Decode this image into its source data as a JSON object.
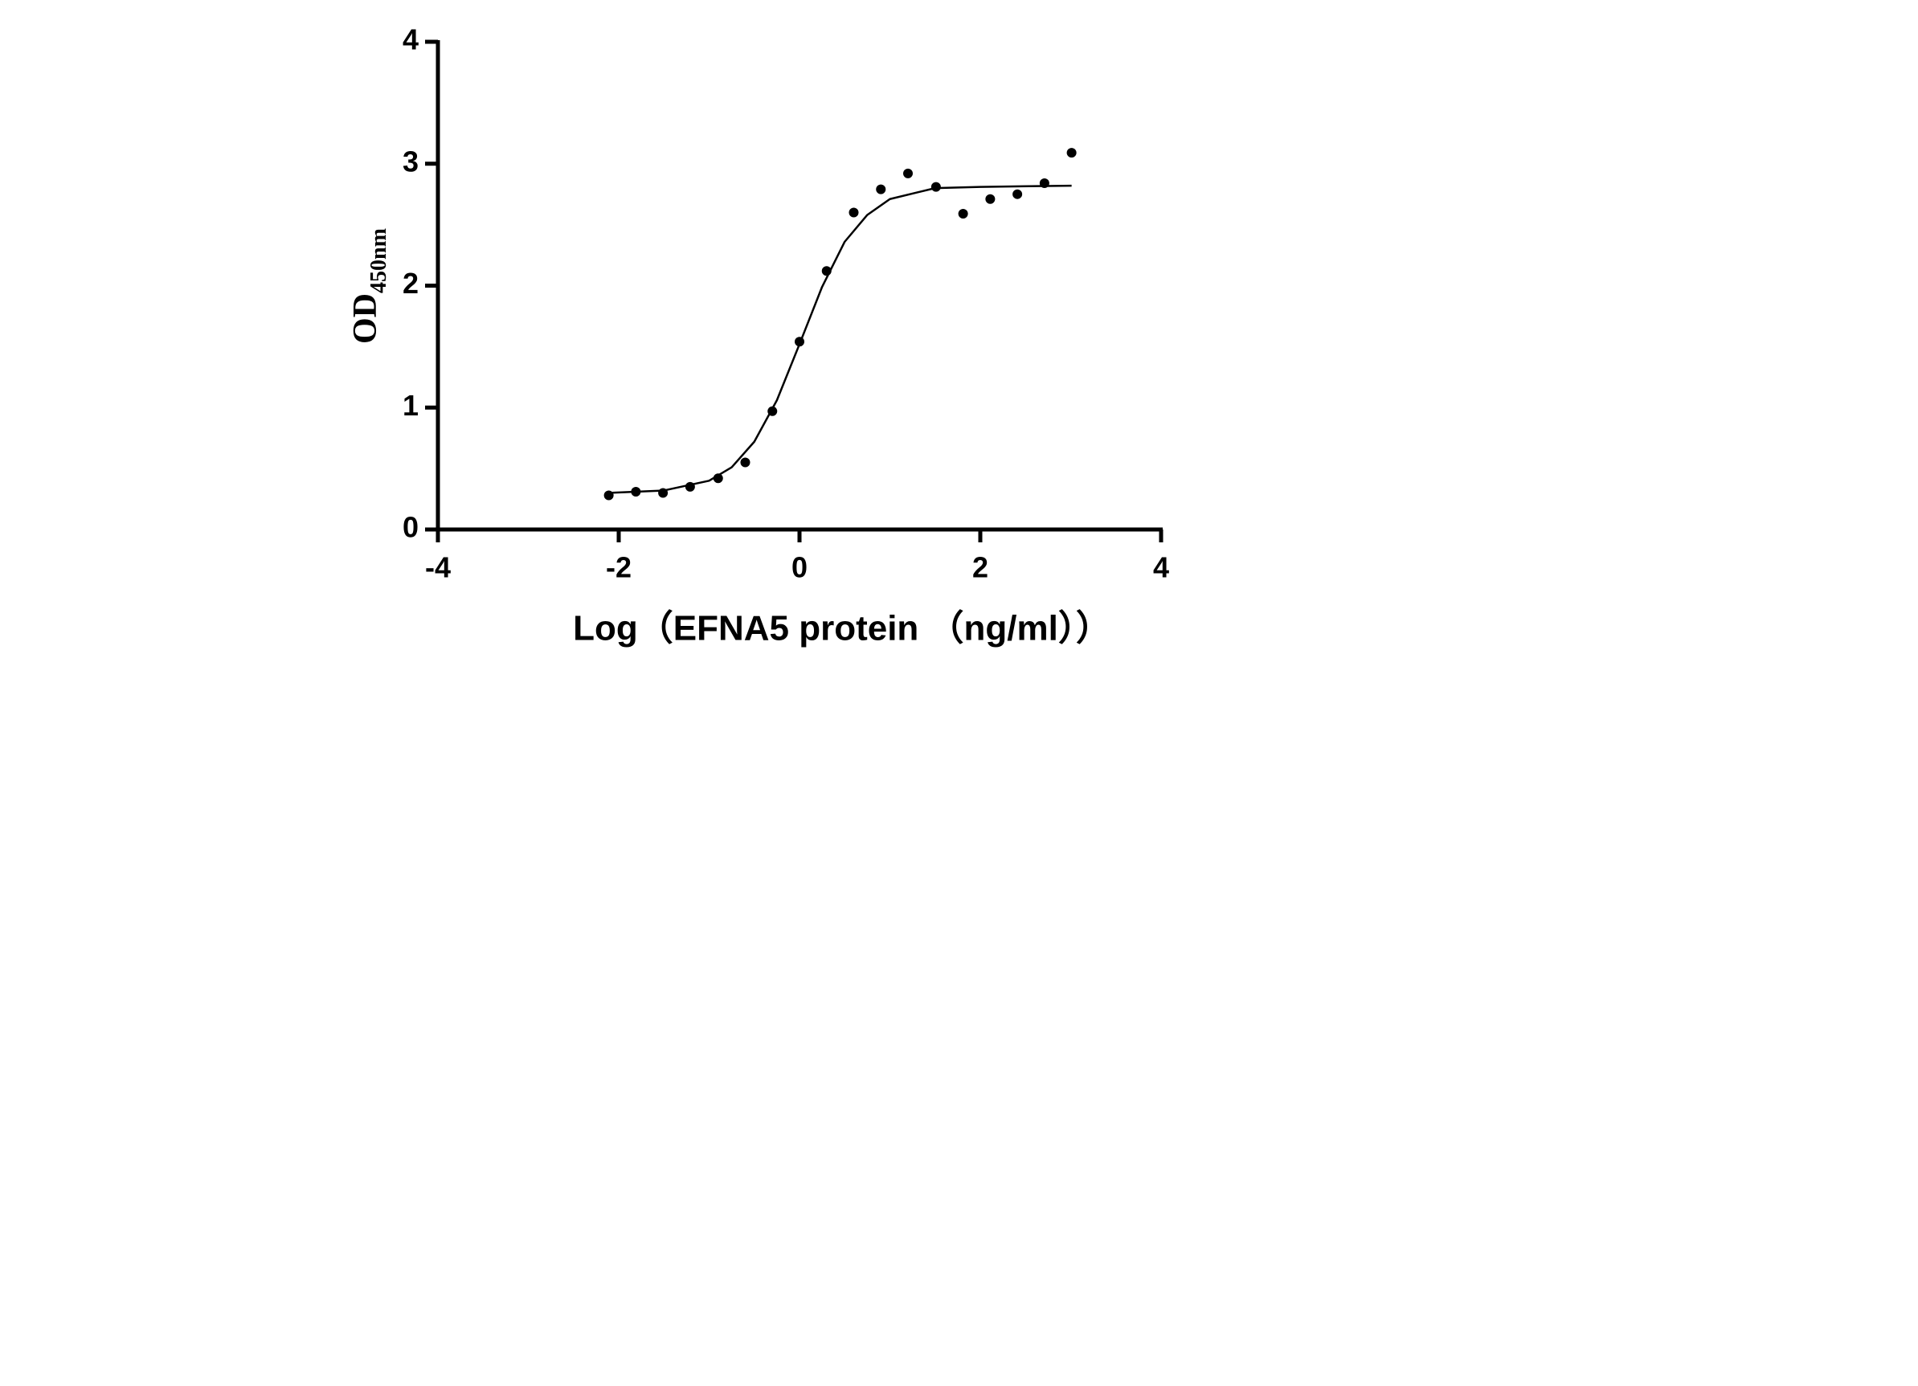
{
  "chart_data": {
    "type": "scatter",
    "x_label": "Log（EFNA5 protein （ng/ml））",
    "y_label": "OD",
    "y_label_sub": "450nm",
    "xlim": [
      -4,
      4
    ],
    "xticks": [
      -4,
      -2,
      0,
      2,
      4
    ],
    "ylim": [
      0,
      4
    ],
    "yticks": [
      0,
      1,
      2,
      3,
      4
    ],
    "series": [
      {
        "type": "scatter",
        "color": "#000000",
        "x": [
          -2.11,
          -1.81,
          -1.51,
          -1.21,
          -0.9,
          -0.6,
          -0.3,
          0,
          0.3,
          0.6,
          0.9,
          1.2,
          1.51,
          1.81,
          2.11,
          2.41,
          2.71,
          3.01
        ],
        "values": [
          0.28,
          0.31,
          0.3,
          0.35,
          0.42,
          0.55,
          0.97,
          1.54,
          2.12,
          2.6,
          2.79,
          2.92,
          2.81,
          2.59,
          2.71,
          2.75,
          2.84,
          3.09
        ]
      },
      {
        "type": "line",
        "color": "#000000",
        "x": [
          -2.11,
          -1.5,
          -1,
          -0.75,
          -0.5,
          -0.25,
          0,
          0.25,
          0.5,
          0.75,
          1,
          1.5,
          2,
          3.01
        ],
        "values": [
          0.3,
          0.32,
          0.4,
          0.51,
          0.72,
          1.06,
          1.52,
          1.99,
          2.36,
          2.58,
          2.71,
          2.8,
          2.81,
          2.82
        ]
      }
    ]
  }
}
